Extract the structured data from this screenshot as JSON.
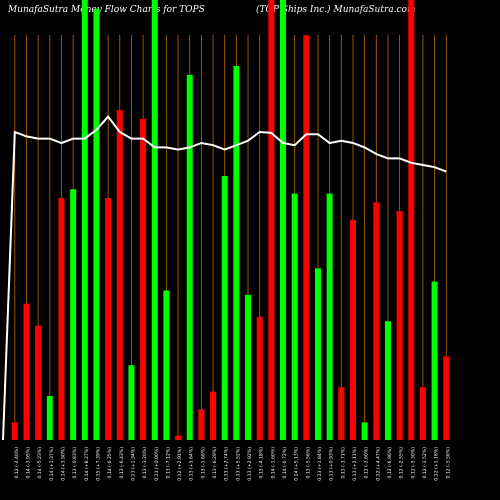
{
  "header": {
    "left": "MunafaSutra  Money Flow  Charts for TOPS",
    "right": "(TOP Ships Inc.) MunafaSutra.com"
  },
  "chart_data": {
    "type": "bar",
    "series_note": "Money flow bars (green = up day, red = down day) with price line overlay",
    "colors": {
      "up": "#00ff00",
      "down": "#ff0000",
      "line": "#ffffff",
      "grid": "#b86a00",
      "background": "#000000"
    },
    "categories": [
      "0.12 (-2.40%)",
      "0.14 (-3.95%)",
      "0.14 (-5.23%)",
      "0.14 (+1.37%)",
      "0.14 (+3.90%)",
      "0.13 (-0.83%)",
      "0.14 (+8.27%)",
      "0.15 (+7.39%)",
      "0.14 (-6.25%)",
      "0.13 (-6.43%)",
      "0.13 (+1.34%)",
      "0.13 (-3.20%)",
      "0.13 (+0.00%)",
      "0.13 (-7.12%)",
      "0.12 (+2.91%)",
      "0.13 (+3.64%)",
      "0.13 (-1.66%)",
      "0.13 (-6.29%)",
      "0.13 (+2.74%)",
      "0.13 (+5.52%)",
      "0.13 (+2.92%)",
      "0.13 (-4.18%)",
      "0.14 (-1.60%)",
      "0.14 (-0.72%)",
      "0.14 (+5.13%)",
      "0.13 (-5.56%)",
      "0.13 (+1.84%)",
      "0.13 (+0.93%)",
      "0.13 (-3.71%)",
      "0.13 (+2.11%)",
      "0.12 (-2.60%)",
      "0.12 (+4.47%)",
      "0.12 (-6.96%)",
      "0.12 (-2.55%)",
      "0.12 (-3.30%)",
      "0.12 (-3.52%)",
      "0.12 (+1.18%)",
      "0.12 (-3.56%)"
    ],
    "bar_direction": [
      "down",
      "down",
      "down",
      "up",
      "down",
      "up",
      "up",
      "up",
      "down",
      "down",
      "up",
      "down",
      "up",
      "up",
      "down",
      "up",
      "down",
      "down",
      "up",
      "up",
      "up",
      "down",
      "down",
      "up",
      "up",
      "down",
      "up",
      "up",
      "down",
      "down",
      "up",
      "down",
      "up",
      "down",
      "down",
      "down",
      "up",
      "down"
    ],
    "bar_values": [
      4,
      31,
      26,
      10,
      55,
      57,
      100,
      98,
      55,
      75,
      17,
      73,
      100,
      34,
      1,
      83,
      7,
      11,
      60,
      85,
      33,
      28,
      100,
      100,
      56,
      92,
      39,
      56,
      12,
      50,
      4,
      54,
      27,
      52,
      100,
      12,
      36,
      19
    ],
    "price_line": [
      70,
      69,
      68.5,
      68.5,
      67.5,
      68.5,
      68.5,
      70.5,
      73.5,
      70,
      68.5,
      68.5,
      66.5,
      66.5,
      66,
      66.5,
      67.5,
      67,
      66,
      67,
      68,
      70,
      69.8,
      67.5,
      67,
      69.5,
      69.5,
      67.5,
      68,
      67.5,
      66.5,
      65,
      64,
      64,
      63,
      62.5,
      62,
      61
    ],
    "ylim": [
      0,
      100
    ],
    "grid": true
  }
}
